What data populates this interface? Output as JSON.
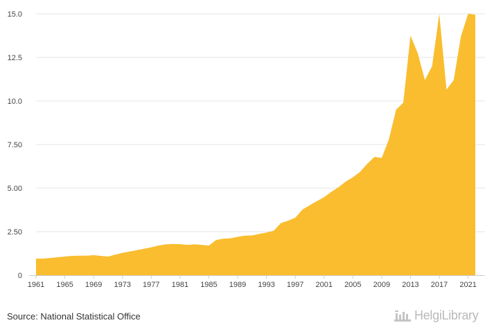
{
  "source_text": "Source: National Statistical Office",
  "brand_text": "HelgiLibrary",
  "chart_data": {
    "type": "area",
    "title": "",
    "xlabel": "",
    "ylabel": "",
    "color": "#F9BD2F",
    "grid": true,
    "xlim": [
      1961,
      2022
    ],
    "ylim": [
      0,
      15.0
    ],
    "x_ticks": [
      "1961",
      "1965",
      "1969",
      "1973",
      "1977",
      "1981",
      "1985",
      "1989",
      "1993",
      "1997",
      "2001",
      "2005",
      "2009",
      "2013",
      "2017",
      "2021"
    ],
    "y_ticks": [
      {
        "value": 0,
        "label": "0"
      },
      {
        "value": 2.5,
        "label": "2.50"
      },
      {
        "value": 5.0,
        "label": "5.00"
      },
      {
        "value": 7.5,
        "label": "7.50"
      },
      {
        "value": 10.0,
        "label": "10.0"
      },
      {
        "value": 12.5,
        "label": "12.5"
      },
      {
        "value": 15.0,
        "label": "15.0"
      }
    ],
    "x": [
      1961,
      1962,
      1963,
      1964,
      1965,
      1966,
      1967,
      1968,
      1969,
      1970,
      1971,
      1972,
      1973,
      1974,
      1975,
      1976,
      1977,
      1978,
      1979,
      1980,
      1981,
      1982,
      1983,
      1984,
      1985,
      1986,
      1987,
      1988,
      1989,
      1990,
      1991,
      1992,
      1993,
      1994,
      1995,
      1996,
      1997,
      1998,
      1999,
      2000,
      2001,
      2002,
      2003,
      2004,
      2005,
      2006,
      2007,
      2008,
      2009,
      2010,
      2011,
      2012,
      2013,
      2014,
      2015,
      2016,
      2017,
      2018,
      2019,
      2020,
      2021,
      2022
    ],
    "values": [
      0.95,
      0.95,
      0.99,
      1.03,
      1.07,
      1.11,
      1.12,
      1.12,
      1.15,
      1.11,
      1.07,
      1.18,
      1.28,
      1.36,
      1.44,
      1.52,
      1.6,
      1.7,
      1.77,
      1.79,
      1.78,
      1.74,
      1.77,
      1.74,
      1.7,
      2.02,
      2.1,
      2.12,
      2.2,
      2.27,
      2.28,
      2.37,
      2.45,
      2.55,
      2.99,
      3.13,
      3.3,
      3.77,
      4.02,
      4.25,
      4.48,
      4.78,
      5.05,
      5.37,
      5.62,
      5.93,
      6.4,
      6.79,
      6.73,
      7.8,
      9.5,
      9.9,
      13.75,
      12.75,
      11.2,
      12.0,
      15.0,
      10.65,
      11.2,
      13.7,
      15.0,
      14.95
    ]
  }
}
